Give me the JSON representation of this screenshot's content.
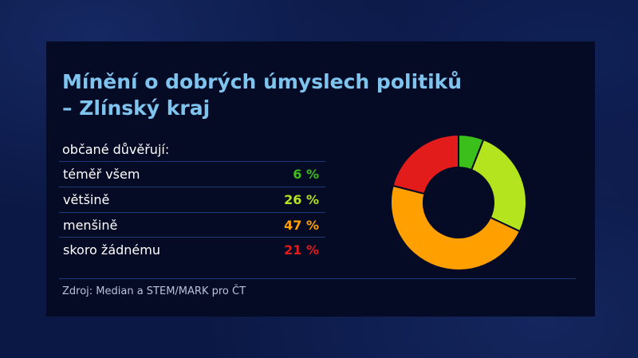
{
  "title_lines": [
    "Mínění o dobrých úmyslech politiků",
    "– Zlínský kraj"
  ],
  "subhead": "občané důvěřují:",
  "source": "Zdroj: Median a STEM/MARK pro ČT",
  "colors": {
    "accent_title": "#7fc4ee",
    "series": [
      "#3bbf1a",
      "#b3e41e",
      "#ffa000",
      "#e21b1b"
    ]
  },
  "chart_data": {
    "type": "pie",
    "variant": "donut",
    "title": "Mínění o dobrých úmyslech politiků – Zlínský kraj",
    "categories": [
      "téměř všem",
      "většině",
      "menšině",
      "skoro žádnému"
    ],
    "values": [
      6,
      26,
      47,
      21
    ],
    "value_labels": [
      "6 %",
      "26 %",
      "47 %",
      "21 %"
    ],
    "unit": "%",
    "legend": "left"
  }
}
